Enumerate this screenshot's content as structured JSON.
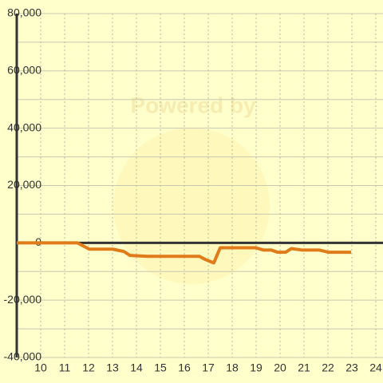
{
  "chart_data": {
    "type": "line",
    "watermark": "Powered by",
    "x": [
      9,
      11.53,
      12.03,
      13,
      13.47,
      13.73,
      14.47,
      15,
      16.63,
      16.87,
      17.23,
      17.5,
      18.97,
      19.3,
      19.63,
      19.9,
      20.23,
      20.47,
      20.9,
      21.63,
      22.03,
      22.97
    ],
    "series": [
      {
        "color": "#e07b1a",
        "values": [
          0,
          0,
          -2200,
          -2200,
          -3000,
          -4400,
          -4700,
          -4700,
          -4700,
          -5800,
          -7000,
          -1700,
          -1700,
          -2500,
          -2500,
          -3300,
          -3300,
          -2000,
          -2500,
          -2500,
          -3300,
          -3300
        ]
      }
    ],
    "xlim": [
      9,
      25
    ],
    "xticks": [
      10,
      11,
      12,
      13,
      14,
      15,
      16,
      17,
      18,
      19,
      20,
      21,
      22,
      23,
      24
    ],
    "ylim": [
      -40000,
      80000
    ],
    "yticks": [
      {
        "value": 80000,
        "label": "80,000"
      },
      {
        "value": 60000,
        "label": "60,000"
      },
      {
        "value": 40000,
        "label": "40,000"
      },
      {
        "value": 20000,
        "label": "20,000"
      },
      0,
      {
        "value": -20000,
        "label": "-20,000"
      },
      {
        "value": -40000,
        "label": "-40,000"
      }
    ],
    "ygrid": [
      70000,
      50000,
      30000,
      10000,
      -10000,
      -30000
    ],
    "grid": true
  }
}
